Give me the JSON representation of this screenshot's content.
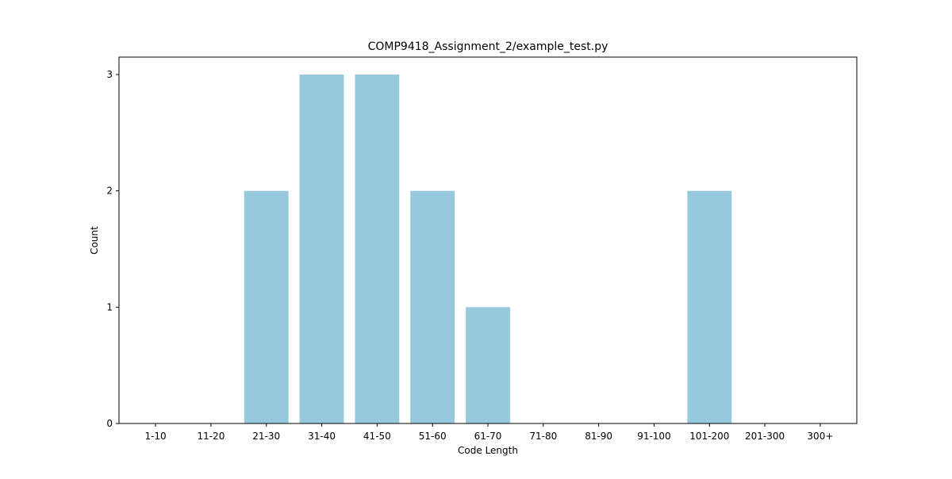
{
  "chart_data": {
    "type": "bar",
    "title": "COMP9418_Assignment_2/example_test.py",
    "xlabel": "Code Length",
    "ylabel": "Count",
    "categories": [
      "1-10",
      "11-20",
      "21-30",
      "31-40",
      "41-50",
      "51-60",
      "61-70",
      "71-80",
      "81-90",
      "91-100",
      "101-200",
      "201-300",
      "300+"
    ],
    "values": [
      0,
      0,
      2,
      3,
      3,
      2,
      1,
      0,
      0,
      0,
      2,
      0,
      0
    ],
    "yticks": [
      0,
      1,
      2,
      3
    ],
    "ylim": [
      0,
      3.15
    ],
    "grid": false,
    "legend": "none",
    "bar_color": "#96c9dd",
    "frame_color": "#000000"
  }
}
